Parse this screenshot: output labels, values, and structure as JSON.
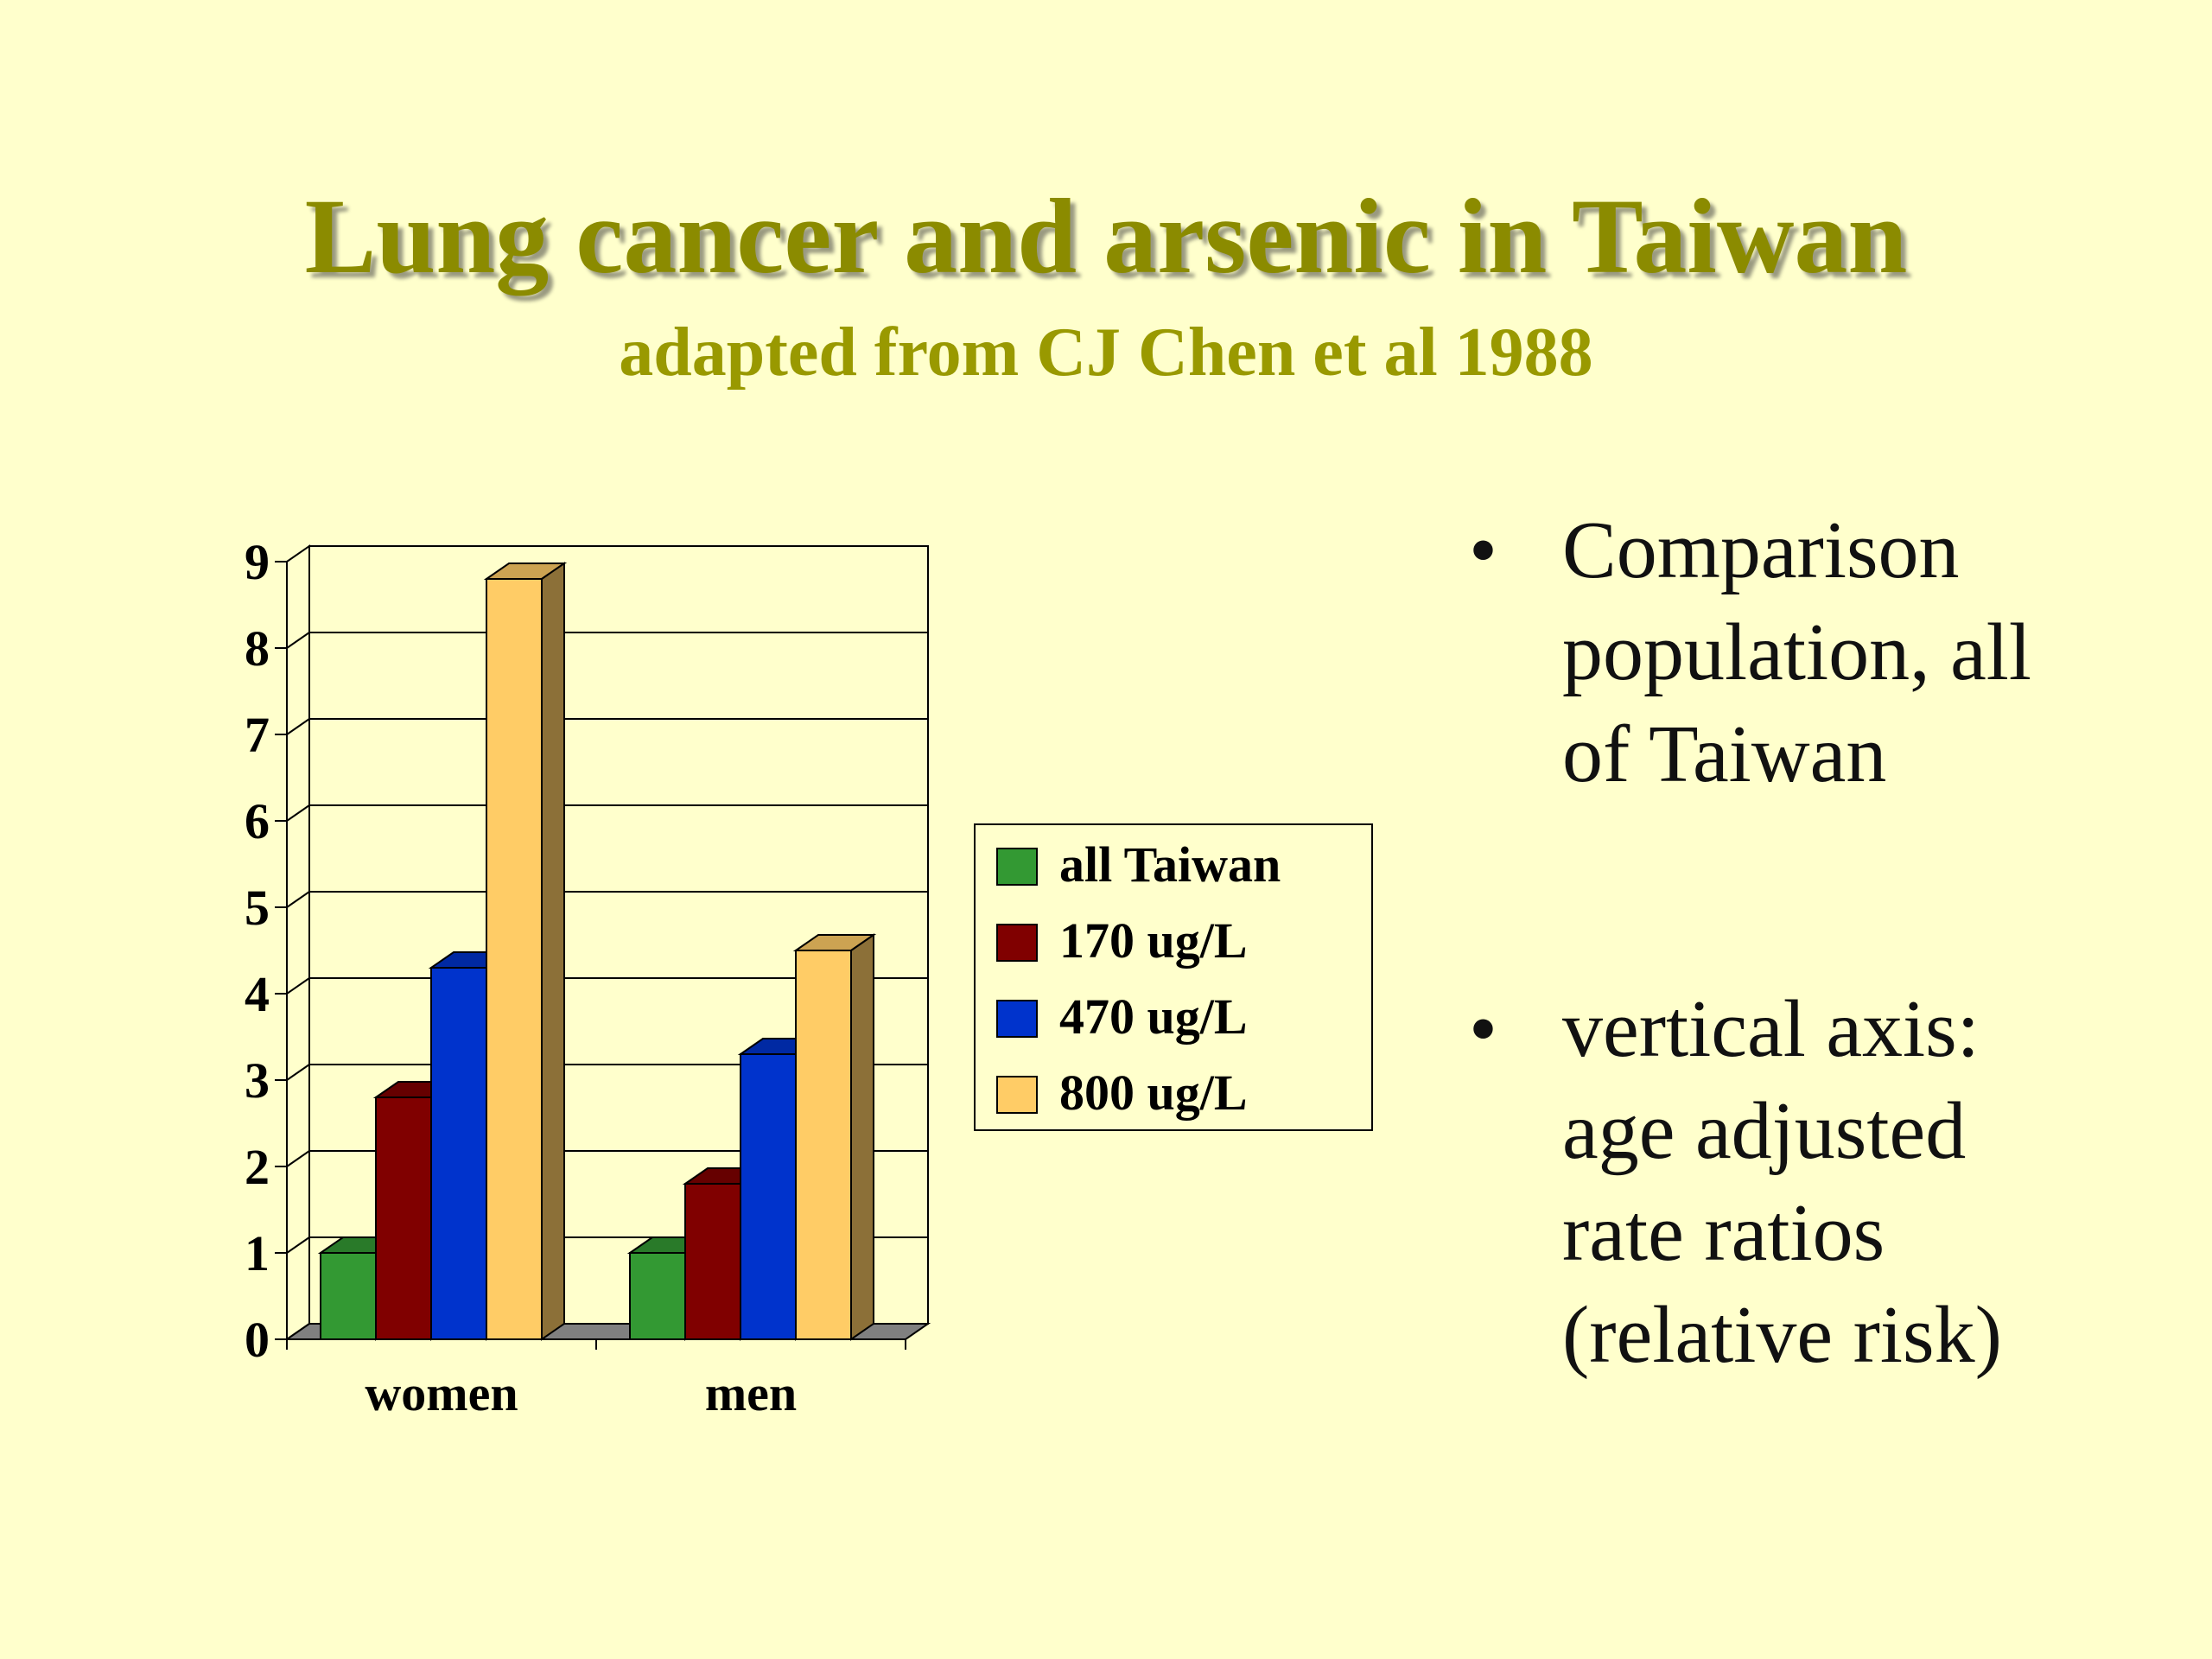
{
  "slide": {
    "title": "Lung cancer and arsenic in Taiwan",
    "subtitle": "adapted from CJ Chen et al 1988",
    "background": "#FFFFCC",
    "title_color": "#8B8B00",
    "subtitle_color": "#999900"
  },
  "bullets": [
    {
      "mark": "•",
      "text": "Comparison\npopulation, all\nof Taiwan"
    },
    {
      "mark": "•",
      "text": "vertical axis:\nage adjusted\nrate ratios\n(relative risk)"
    }
  ],
  "chart_data": {
    "type": "bar",
    "style": "3d-clustered-column",
    "categories": [
      "women",
      "men"
    ],
    "series": [
      {
        "name": "all Taiwan",
        "color": "#339933",
        "values": [
          1,
          1
        ]
      },
      {
        "name": "170 ug/L",
        "color": "#800000",
        "values": [
          2.8,
          1.8
        ]
      },
      {
        "name": "470 ug/L",
        "color": "#0033CC",
        "values": [
          4.3,
          3.3
        ]
      },
      {
        "name": "800 ug/L",
        "color": "#FFCC66",
        "values": [
          8.8,
          4.5
        ]
      }
    ],
    "ylim": [
      0,
      9
    ],
    "yticks": [
      "0",
      "1",
      "2",
      "3",
      "4",
      "5",
      "6",
      "7",
      "8",
      "9"
    ],
    "grid": true,
    "legend_position": "right"
  }
}
